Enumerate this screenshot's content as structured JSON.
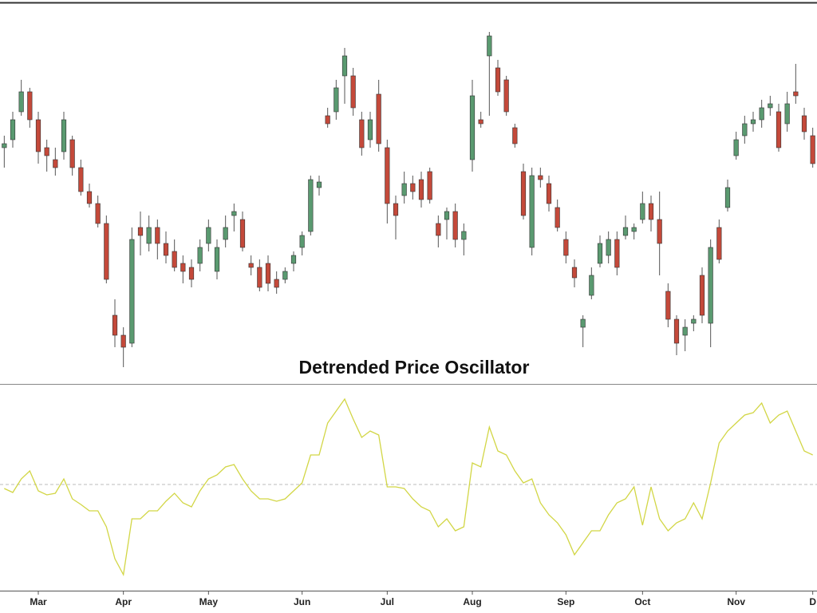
{
  "chart_data": [
    {
      "type": "candlestick",
      "open": [
        295,
        305,
        340,
        365,
        330,
        295,
        280,
        290,
        305,
        270,
        240,
        225,
        200,
        85,
        60,
        50,
        195,
        175,
        195,
        175,
        165,
        150,
        145,
        150,
        175,
        140,
        180,
        210,
        205,
        150,
        145,
        150,
        130,
        130,
        150,
        170,
        190,
        245,
        335,
        340,
        385,
        385,
        330,
        305,
        362,
        295,
        225,
        235,
        250,
        255,
        265,
        200,
        205,
        215,
        180,
        280,
        330,
        410,
        395,
        380,
        320,
        265,
        170,
        260,
        250,
        220,
        180,
        145,
        70,
        110,
        150,
        160,
        180,
        185,
        190,
        205,
        225,
        205,
        115,
        80,
        60,
        75,
        135,
        75,
        195,
        220,
        285,
        310,
        325,
        330,
        345,
        340,
        325,
        365,
        335,
        310
      ],
      "high": [
        310,
        340,
        380,
        370,
        340,
        305,
        295,
        340,
        310,
        280,
        250,
        235,
        210,
        105,
        70,
        195,
        215,
        210,
        205,
        190,
        180,
        160,
        155,
        180,
        205,
        180,
        210,
        225,
        215,
        160,
        155,
        160,
        140,
        145,
        165,
        190,
        260,
        260,
        345,
        380,
        420,
        395,
        340,
        340,
        380,
        305,
        235,
        265,
        260,
        265,
        270,
        210,
        220,
        225,
        200,
        380,
        340,
        440,
        405,
        385,
        325,
        275,
        270,
        270,
        260,
        230,
        190,
        155,
        85,
        145,
        185,
        190,
        190,
        210,
        200,
        240,
        235,
        240,
        125,
        85,
        80,
        85,
        145,
        180,
        205,
        255,
        315,
        335,
        340,
        355,
        360,
        350,
        365,
        400,
        345,
        320
      ],
      "low": [
        270,
        295,
        335,
        320,
        275,
        265,
        260,
        280,
        260,
        235,
        220,
        195,
        125,
        45,
        20,
        45,
        160,
        165,
        155,
        150,
        140,
        125,
        120,
        140,
        165,
        130,
        170,
        190,
        165,
        135,
        115,
        115,
        112,
        125,
        140,
        160,
        185,
        235,
        320,
        330,
        350,
        335,
        285,
        295,
        290,
        200,
        180,
        225,
        230,
        220,
        225,
        170,
        180,
        170,
        160,
        265,
        320,
        335,
        360,
        335,
        295,
        205,
        160,
        245,
        215,
        190,
        150,
        120,
        45,
        105,
        145,
        150,
        135,
        180,
        180,
        200,
        190,
        135,
        70,
        35,
        40,
        65,
        75,
        45,
        150,
        215,
        280,
        300,
        315,
        320,
        335,
        290,
        315,
        350,
        305,
        270
      ],
      "close": [
        300,
        330,
        365,
        330,
        290,
        285,
        270,
        330,
        270,
        240,
        225,
        200,
        130,
        60,
        45,
        180,
        185,
        195,
        175,
        160,
        145,
        140,
        130,
        170,
        195,
        170,
        195,
        215,
        170,
        145,
        120,
        125,
        120,
        140,
        160,
        185,
        255,
        252,
        325,
        370,
        410,
        345,
        295,
        330,
        300,
        225,
        210,
        250,
        240,
        230,
        230,
        185,
        215,
        180,
        190,
        360,
        325,
        435,
        365,
        340,
        300,
        210,
        260,
        255,
        225,
        195,
        160,
        132,
        80,
        135,
        175,
        180,
        145,
        195,
        195,
        225,
        205,
        175,
        80,
        50,
        70,
        80,
        85,
        170,
        155,
        245,
        305,
        325,
        330,
        345,
        350,
        295,
        350,
        360,
        315,
        275
      ],
      "up_color": "#5a9a70",
      "down_color": "#c4493a",
      "ylim": [
        0,
        475
      ]
    },
    {
      "type": "line",
      "title": "Detrended Price Oscillator",
      "categories": [
        null,
        null,
        null,
        null,
        "Mar",
        null,
        null,
        null,
        null,
        null,
        null,
        null,
        null,
        null,
        "Apr",
        null,
        null,
        null,
        null,
        null,
        null,
        null,
        null,
        null,
        "May",
        null,
        null,
        null,
        null,
        null,
        null,
        null,
        null,
        null,
        null,
        "Jun",
        null,
        null,
        null,
        null,
        null,
        null,
        null,
        null,
        null,
        "Jul",
        null,
        null,
        null,
        null,
        null,
        null,
        null,
        null,
        null,
        "Aug",
        null,
        null,
        null,
        null,
        null,
        null,
        null,
        null,
        null,
        null,
        "Sep",
        null,
        null,
        null,
        null,
        null,
        null,
        null,
        null,
        "Oct",
        null,
        null,
        null,
        null,
        null,
        null,
        null,
        null,
        null,
        null,
        "Nov",
        null,
        null,
        null,
        null,
        null,
        null,
        null,
        null,
        "D"
      ],
      "values": [
        -0.5,
        -1.0,
        0.7,
        1.7,
        -0.8,
        -1.3,
        -1.1,
        0.7,
        -1.8,
        -2.5,
        -3.3,
        -3.3,
        -5.3,
        -9.3,
        -11.3,
        -4.3,
        -4.3,
        -3.3,
        -3.3,
        -2.1,
        -1.1,
        -2.3,
        -2.8,
        -0.8,
        0.7,
        1.2,
        2.2,
        2.5,
        0.7,
        -0.8,
        -1.8,
        -1.8,
        -2.1,
        -1.8,
        -0.8,
        0.2,
        3.7,
        3.7,
        7.7,
        9.2,
        10.7,
        8.2,
        5.9,
        6.7,
        6.2,
        -0.3,
        -0.3,
        -0.5,
        -1.8,
        -2.8,
        -3.3,
        -5.3,
        -4.3,
        -5.8,
        -5.3,
        2.7,
        2.2,
        7.2,
        4.2,
        3.7,
        1.7,
        0.2,
        0.7,
        -2.3,
        -3.8,
        -4.8,
        -6.3,
        -8.8,
        -7.3,
        -5.8,
        -5.8,
        -3.8,
        -2.3,
        -1.8,
        -0.3,
        -5.1,
        -0.3,
        -4.3,
        -5.8,
        -4.8,
        -4.3,
        -2.3,
        -4.3,
        0.2,
        5.2,
        6.7,
        7.7,
        8.7,
        9.0,
        10.2,
        7.7,
        8.7,
        9.2,
        6.7,
        4.2,
        3.7
      ],
      "color": "#d2d645",
      "ylim": [
        -13.3,
        12.4
      ]
    }
  ]
}
